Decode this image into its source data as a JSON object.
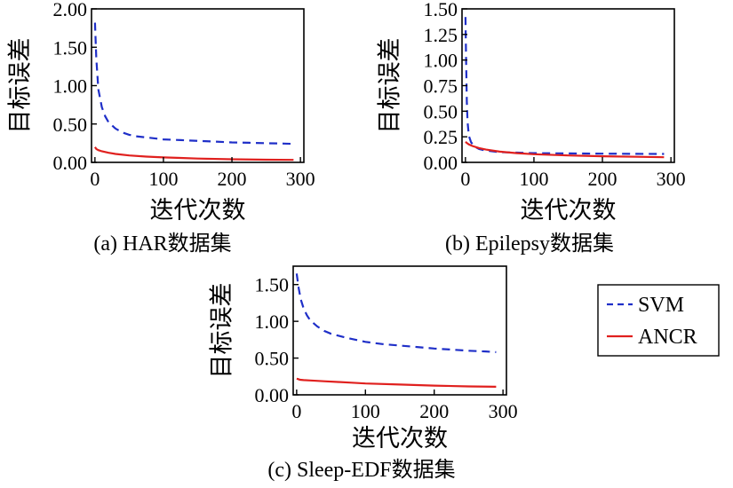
{
  "chart_data": [
    {
      "type": "line",
      "caption": "(a) HAR数据集",
      "xlabel": "迭代次数",
      "ylabel": "目标误差",
      "xlim": [
        -5,
        305
      ],
      "ylim": [
        0,
        2.0
      ],
      "xticks": [
        "0",
        "100",
        "200",
        "300"
      ],
      "yticks": [
        "0.00",
        "0.50",
        "1.00",
        "1.50",
        "2.00"
      ],
      "series": [
        {
          "name": "SVM",
          "color": "#1f2fc8",
          "dash": true,
          "x": [
            0,
            2,
            5,
            10,
            15,
            20,
            30,
            40,
            50,
            60,
            80,
            100,
            125,
            150,
            175,
            200,
            225,
            250,
            275,
            290
          ],
          "y": [
            1.82,
            1.35,
            0.95,
            0.72,
            0.6,
            0.52,
            0.44,
            0.39,
            0.36,
            0.34,
            0.32,
            0.3,
            0.29,
            0.28,
            0.27,
            0.26,
            0.255,
            0.25,
            0.245,
            0.24
          ]
        },
        {
          "name": "ANCR",
          "color": "#e0201e",
          "dash": false,
          "x": [
            0,
            2,
            5,
            10,
            20,
            30,
            50,
            75,
            100,
            125,
            150,
            200,
            250,
            290
          ],
          "y": [
            0.2,
            0.175,
            0.16,
            0.145,
            0.125,
            0.11,
            0.09,
            0.075,
            0.065,
            0.058,
            0.05,
            0.04,
            0.035,
            0.032
          ]
        }
      ]
    },
    {
      "type": "line",
      "caption": "(b) Epilepsy数据集",
      "xlabel": "迭代次数",
      "ylabel": "目标误差",
      "xlim": [
        -5,
        305
      ],
      "ylim": [
        0,
        1.5
      ],
      "xticks": [
        "0",
        "100",
        "200",
        "300"
      ],
      "yticks": [
        "0.00",
        "0.25",
        "0.50",
        "0.75",
        "1.00",
        "1.25",
        "1.50"
      ],
      "series": [
        {
          "name": "SVM",
          "color": "#1f2fc8",
          "dash": true,
          "x": [
            0,
            1,
            2,
            3,
            5,
            8,
            12,
            20,
            30,
            50,
            75,
            100,
            150,
            200,
            250,
            290
          ],
          "y": [
            1.42,
            1.0,
            0.6,
            0.4,
            0.26,
            0.2,
            0.16,
            0.13,
            0.115,
            0.1,
            0.095,
            0.09,
            0.088,
            0.085,
            0.083,
            0.082
          ]
        },
        {
          "name": "ANCR",
          "color": "#e0201e",
          "dash": false,
          "x": [
            0,
            2,
            5,
            10,
            20,
            30,
            50,
            75,
            100,
            150,
            200,
            250,
            290
          ],
          "y": [
            0.2,
            0.19,
            0.175,
            0.16,
            0.14,
            0.125,
            0.105,
            0.09,
            0.08,
            0.068,
            0.06,
            0.055,
            0.05
          ]
        }
      ]
    },
    {
      "type": "line",
      "caption": "(c) Sleep-EDF数据集",
      "xlabel": "迭代次数",
      "ylabel": "目标误差",
      "xlim": [
        -5,
        305
      ],
      "ylim": [
        0,
        1.75
      ],
      "xticks": [
        "0",
        "100",
        "200",
        "300"
      ],
      "yticks": [
        "0.00",
        "0.50",
        "1.00",
        "1.50"
      ],
      "series": [
        {
          "name": "SVM",
          "color": "#1f2fc8",
          "dash": true,
          "x": [
            0,
            3,
            6,
            10,
            15,
            20,
            30,
            40,
            50,
            75,
            100,
            125,
            150,
            175,
            200,
            225,
            250,
            275,
            290
          ],
          "y": [
            1.65,
            1.45,
            1.3,
            1.18,
            1.08,
            1.01,
            0.93,
            0.87,
            0.83,
            0.77,
            0.72,
            0.69,
            0.67,
            0.65,
            0.63,
            0.615,
            0.6,
            0.59,
            0.58
          ]
        },
        {
          "name": "ANCR",
          "color": "#e0201e",
          "dash": false,
          "x": [
            0,
            2,
            5,
            10,
            20,
            40,
            60,
            80,
            100,
            150,
            200,
            250,
            290
          ],
          "y": [
            0.22,
            0.215,
            0.205,
            0.2,
            0.195,
            0.185,
            0.175,
            0.165,
            0.155,
            0.14,
            0.125,
            0.115,
            0.11
          ]
        }
      ]
    }
  ],
  "legend": [
    {
      "label": "SVM",
      "color": "#1f2fc8",
      "dash": true
    },
    {
      "label": "ANCR",
      "color": "#e0201e",
      "dash": false
    }
  ]
}
